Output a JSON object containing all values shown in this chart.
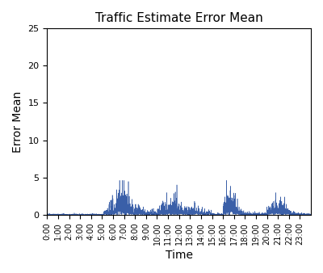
{
  "title": "Traffic Estimate Error Mean",
  "xlabel": "Time",
  "ylabel": "Error Mean",
  "xlim": [
    0,
    1440
  ],
  "ylim": [
    0,
    25
  ],
  "yticks": [
    0,
    5,
    10,
    15,
    20,
    25
  ],
  "xtick_positions": [
    0,
    60,
    120,
    180,
    240,
    300,
    360,
    420,
    480,
    540,
    600,
    660,
    720,
    780,
    840,
    900,
    960,
    1020,
    1080,
    1140,
    1200,
    1260,
    1320,
    1380
  ],
  "xtick_labels": [
    "0:00",
    "1:00",
    "2:00",
    "3:00",
    "4:00",
    "5:00",
    "6:00",
    "7:00",
    "8:00",
    "9:00",
    "10:00",
    "11:00",
    "12:00",
    "13:00",
    "14:00",
    "15:00",
    "16:00",
    "17:00",
    "18:00",
    "19:00",
    "20:00",
    "21:00",
    "22:00",
    "23:00"
  ],
  "line_color": "#3a5fa8",
  "background_color": "#ffffff",
  "title_fontsize": 11,
  "label_fontsize": 10,
  "tick_fontsize": 7,
  "ytick_fontsize": 8
}
